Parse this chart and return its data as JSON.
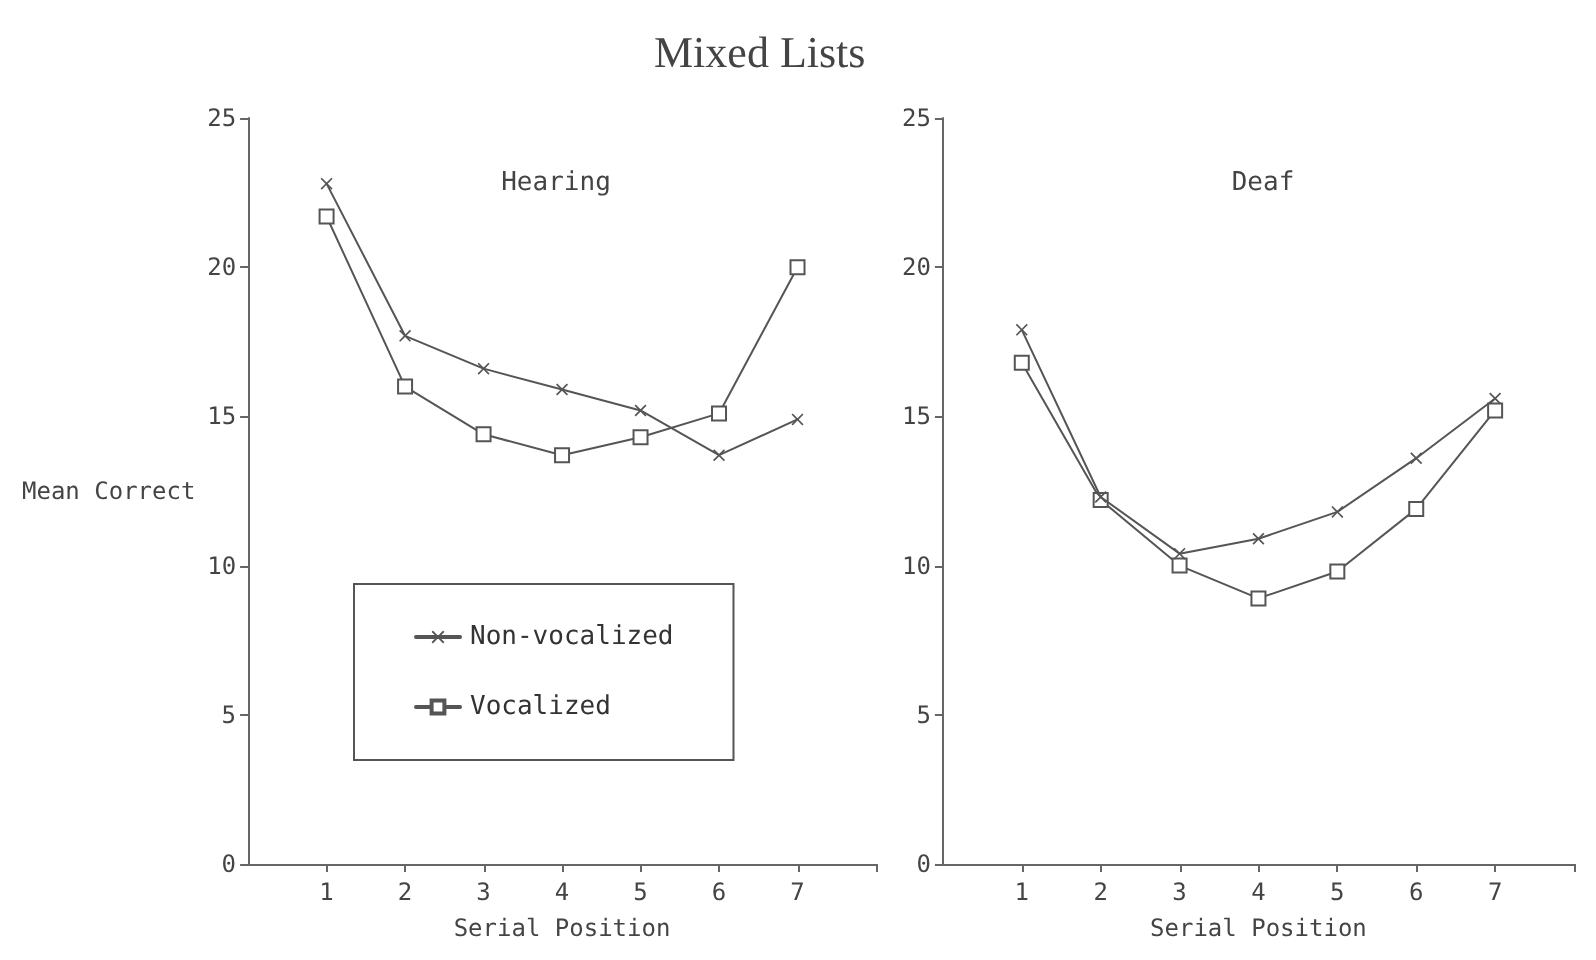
{
  "chart_data": [
    {
      "type": "line",
      "title": "Mixed Lists",
      "subtitle": "Hearing",
      "xlabel": "Serial Position",
      "ylabel": "Mean Correct",
      "x": [
        1,
        2,
        3,
        4,
        5,
        6,
        7
      ],
      "xlim": [
        0,
        8
      ],
      "xticks": [
        1,
        2,
        3,
        4,
        5,
        6,
        7,
        {
          "value": 8,
          "label": null
        }
      ],
      "ylim": [
        0,
        25
      ],
      "yticks": [
        0,
        5,
        10,
        15,
        20,
        25
      ],
      "legend": "bottom",
      "series": [
        {
          "name": "Non-vocalized",
          "color": "#555555",
          "marker": "cross",
          "values": [
            22.8,
            17.7,
            16.6,
            15.9,
            15.2,
            13.7,
            14.9
          ]
        },
        {
          "name": "Vocalized",
          "color": "#555555",
          "marker": "square",
          "values": [
            21.7,
            16.0,
            14.4,
            13.7,
            14.3,
            15.1,
            20.0
          ]
        }
      ]
    },
    {
      "type": "line",
      "subtitle": "Deaf",
      "xlabel": "Serial Position",
      "x": [
        1,
        2,
        3,
        4,
        5,
        6,
        7
      ],
      "xlim": [
        0,
        8
      ],
      "xticks": [
        1,
        2,
        3,
        4,
        5,
        6,
        7,
        {
          "value": 8,
          "label": null
        }
      ],
      "ylim": [
        0,
        25
      ],
      "yticks": [
        0,
        5,
        10,
        15,
        20,
        25
      ],
      "series": [
        {
          "color": "#555555",
          "marker": "cross",
          "values": [
            17.9,
            12.3,
            10.4,
            10.9,
            11.8,
            13.6,
            15.6
          ]
        },
        {
          "color": "#555555",
          "marker": "square",
          "values": [
            16.8,
            12.2,
            10.0,
            8.9,
            9.8,
            11.9,
            15.2
          ]
        }
      ]
    }
  ]
}
